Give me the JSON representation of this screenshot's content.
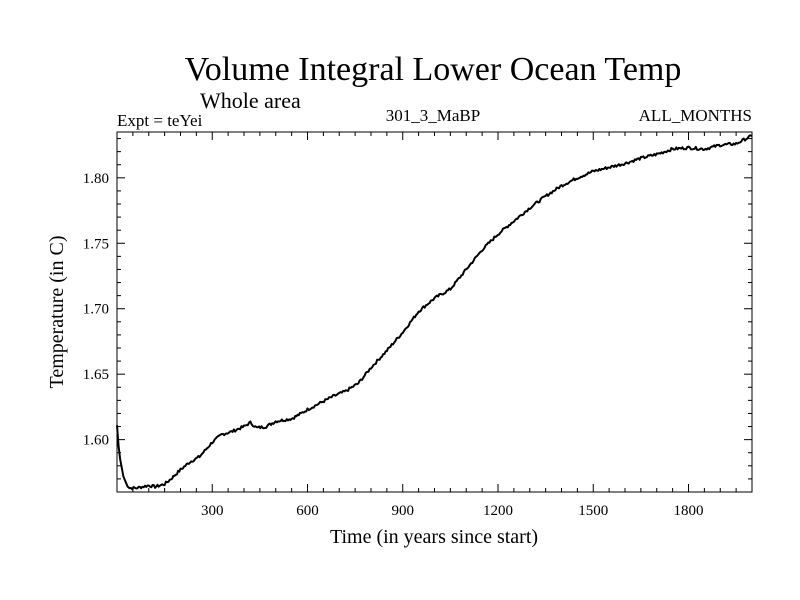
{
  "chart_data": {
    "type": "line",
    "title": "Volume Integral Lower Ocean Temp",
    "subtitle": "Whole area",
    "expt_label": "Expt = teYei",
    "run_label": "301_3_MaBP",
    "period_label": "ALL_MONTHS",
    "xlabel": "Time (in years since start)",
    "ylabel": "Temperature (in C)",
    "xlim": [
      0,
      2000
    ],
    "ylim": [
      1.56,
      1.835
    ],
    "x_ticks": [
      300,
      600,
      900,
      1200,
      1500,
      1800
    ],
    "x_tick_labels": [
      "300",
      "600",
      "900",
      "1200",
      "1500",
      "1800"
    ],
    "y_ticks": [
      1.6,
      1.65,
      1.7,
      1.75,
      1.8
    ],
    "y_tick_labels": [
      "1.60",
      "1.65",
      "1.70",
      "1.75",
      "1.80"
    ],
    "series": [
      {
        "name": "Temperature",
        "color": "#000000",
        "x": [
          0,
          5,
          10,
          20,
          30,
          40,
          60,
          80,
          100,
          120,
          150,
          170,
          200,
          230,
          260,
          300,
          330,
          360,
          400,
          420,
          440,
          470,
          500,
          550,
          580,
          600,
          640,
          680,
          720,
          760,
          800,
          850,
          900,
          950,
          1000,
          1050,
          1100,
          1150,
          1200,
          1250,
          1300,
          1350,
          1400,
          1450,
          1500,
          1550,
          1600,
          1650,
          1700,
          1750,
          1800,
          1850,
          1900,
          1950,
          1990,
          2000
        ],
        "values": [
          1.611,
          1.595,
          1.585,
          1.572,
          1.566,
          1.563,
          1.563,
          1.564,
          1.565,
          1.564,
          1.566,
          1.57,
          1.577,
          1.583,
          1.587,
          1.598,
          1.604,
          1.606,
          1.61,
          1.613,
          1.609,
          1.61,
          1.614,
          1.616,
          1.62,
          1.623,
          1.628,
          1.633,
          1.637,
          1.643,
          1.655,
          1.668,
          1.682,
          1.698,
          1.708,
          1.715,
          1.73,
          1.745,
          1.757,
          1.767,
          1.777,
          1.786,
          1.794,
          1.8,
          1.805,
          1.808,
          1.811,
          1.815,
          1.818,
          1.822,
          1.823,
          1.822,
          1.825,
          1.826,
          1.831,
          1.832
        ]
      }
    ]
  }
}
